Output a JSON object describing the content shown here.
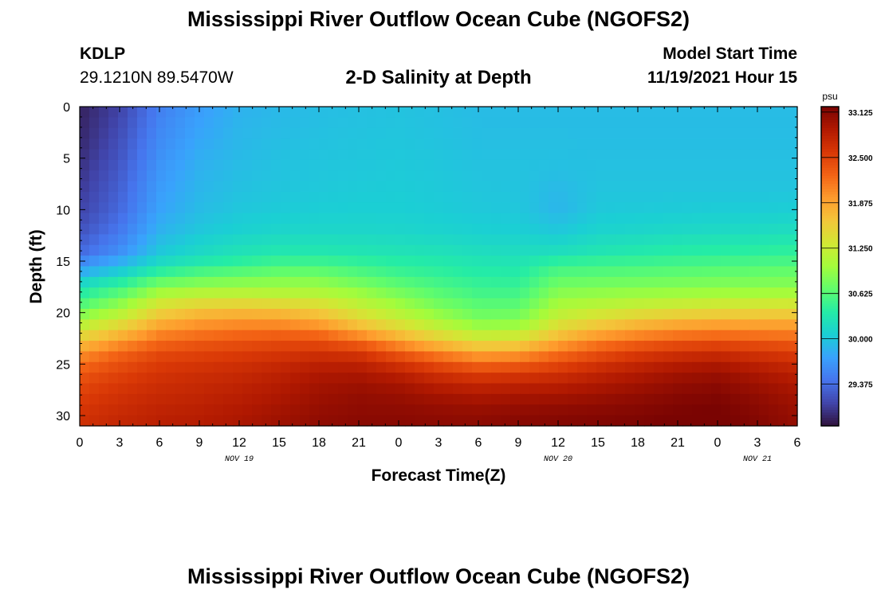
{
  "header": {
    "title": "Mississippi River Outflow Ocean Cube (NGOFS2)",
    "station_id": "KDLP",
    "station_coords": "29.1210N  89.5470W",
    "plot_title": "2-D Salinity at Depth",
    "model_start_label": "Model Start Time",
    "model_start_value": "11/19/2021 Hour 15"
  },
  "footer": {
    "repeat_title": "Mississippi River Outflow Ocean Cube (NGOFS2)"
  },
  "chart_data": {
    "type": "heatmap",
    "title": "2-D Salinity at Depth",
    "xlabel": "Forecast Time(Z)",
    "ylabel": "Depth (ft)",
    "x_tick_labels": [
      "0",
      "3",
      "6",
      "9",
      "12",
      "15",
      "18",
      "21",
      "0",
      "3",
      "6",
      "9",
      "12",
      "15",
      "18",
      "21",
      "0",
      "3",
      "6"
    ],
    "date_labels": [
      {
        "label": "NOV 19",
        "tick_index": 4
      },
      {
        "label": "NOV 20",
        "tick_index": 12
      },
      {
        "label": "NOV 21",
        "tick_index": 17
      }
    ],
    "y_tick_labels": [
      "0",
      "5",
      "10",
      "15",
      "20",
      "25",
      "30"
    ],
    "ylim": [
      0,
      31
    ],
    "x_range_hours": [
      0,
      54
    ],
    "y_inverted": true,
    "colorbar": {
      "unit": "psu",
      "tick_labels": [
        "33.125",
        "32.500",
        "31.875",
        "31.250",
        "30.625",
        "30.000",
        "29.375"
      ],
      "tick_values": [
        33.125,
        32.5,
        31.875,
        31.25,
        30.625,
        30.0,
        29.375
      ],
      "range": [
        28.8,
        33.2
      ],
      "colormap": [
        "#30123b",
        "#4145ab",
        "#4675ed",
        "#39a2fc",
        "#1bcfd4",
        "#24eca6",
        "#61fc6c",
        "#a4fc3b",
        "#d1e834",
        "#f3c63a",
        "#fe9b2d",
        "#f36315",
        "#d93806",
        "#b11901",
        "#7a0402"
      ]
    },
    "columns_times_hours": [
      0,
      3,
      6,
      9,
      12,
      15,
      18,
      21,
      24,
      27,
      30,
      33,
      36,
      39,
      42,
      45,
      48,
      51,
      54
    ],
    "rows_depth_ft": [
      0,
      2,
      4,
      6,
      8,
      10,
      12,
      14,
      15,
      16,
      17,
      18,
      19,
      20,
      21,
      22,
      23,
      24,
      25,
      26,
      27,
      28,
      29,
      30,
      31
    ],
    "salinity_psu": [
      [
        28.9,
        29.1,
        29.5,
        29.7,
        29.85,
        29.9,
        29.93,
        29.95,
        29.97,
        29.95,
        29.92,
        29.92,
        29.92,
        29.92,
        29.92,
        29.92,
        29.92,
        29.92,
        29.92
      ],
      [
        28.92,
        29.15,
        29.55,
        29.75,
        29.88,
        29.92,
        29.95,
        29.97,
        29.98,
        29.96,
        29.93,
        29.93,
        29.93,
        29.93,
        29.93,
        29.93,
        29.93,
        29.93,
        29.93
      ],
      [
        28.95,
        29.2,
        29.6,
        29.8,
        29.9,
        29.95,
        29.97,
        29.99,
        30.0,
        29.98,
        29.95,
        29.95,
        29.95,
        29.94,
        29.94,
        29.94,
        29.94,
        29.94,
        29.94
      ],
      [
        29.0,
        29.25,
        29.65,
        29.85,
        29.93,
        29.97,
        29.99,
        30.0,
        30.02,
        30.0,
        29.97,
        29.97,
        29.95,
        29.96,
        29.96,
        29.96,
        29.96,
        29.96,
        29.96
      ],
      [
        29.05,
        29.3,
        29.7,
        29.88,
        29.96,
        29.99,
        30.01,
        30.03,
        30.04,
        30.02,
        29.99,
        29.98,
        29.9,
        29.98,
        29.98,
        29.98,
        29.98,
        29.98,
        29.98
      ],
      [
        29.1,
        29.35,
        29.75,
        29.92,
        30.0,
        30.03,
        30.05,
        30.06,
        30.06,
        30.04,
        30.01,
        30.0,
        29.88,
        30.01,
        30.02,
        30.03,
        30.04,
        30.04,
        30.05
      ],
      [
        29.2,
        29.45,
        29.85,
        30.0,
        30.08,
        30.12,
        30.13,
        30.13,
        30.12,
        30.1,
        30.07,
        30.06,
        30.0,
        30.1,
        30.12,
        30.15,
        30.16,
        30.18,
        30.2
      ],
      [
        29.35,
        29.6,
        30.0,
        30.15,
        30.25,
        30.3,
        30.3,
        30.28,
        30.26,
        30.24,
        30.2,
        30.19,
        30.2,
        30.28,
        30.32,
        30.36,
        30.38,
        30.4,
        30.42
      ],
      [
        29.55,
        29.8,
        30.15,
        30.3,
        30.4,
        30.48,
        30.48,
        30.42,
        30.37,
        30.33,
        30.28,
        30.27,
        30.4,
        30.45,
        30.47,
        30.5,
        30.52,
        30.54,
        30.55
      ],
      [
        29.8,
        30.05,
        30.4,
        30.55,
        30.62,
        30.68,
        30.68,
        30.58,
        30.48,
        30.42,
        30.36,
        30.35,
        30.58,
        30.6,
        30.62,
        30.64,
        30.66,
        30.68,
        30.7
      ],
      [
        30.1,
        30.35,
        30.7,
        30.8,
        30.85,
        30.88,
        30.88,
        30.75,
        30.62,
        30.52,
        30.44,
        30.43,
        30.72,
        30.74,
        30.76,
        30.78,
        30.8,
        30.81,
        30.82
      ],
      [
        30.35,
        30.6,
        31.0,
        31.1,
        31.12,
        31.1,
        31.08,
        30.95,
        30.78,
        30.63,
        30.52,
        30.52,
        30.86,
        30.9,
        30.93,
        30.95,
        30.97,
        30.98,
        31.0
      ],
      [
        30.55,
        30.85,
        31.3,
        31.42,
        31.45,
        31.42,
        31.35,
        31.15,
        30.95,
        30.75,
        30.62,
        30.62,
        31.0,
        31.08,
        31.15,
        31.2,
        31.24,
        31.26,
        31.28
      ],
      [
        30.8,
        31.1,
        31.55,
        31.7,
        31.75,
        31.72,
        31.62,
        31.35,
        31.12,
        30.9,
        30.72,
        30.74,
        31.15,
        31.3,
        31.4,
        31.48,
        31.52,
        31.54,
        31.55
      ],
      [
        31.1,
        31.4,
        31.8,
        31.95,
        32.0,
        32.0,
        31.9,
        31.6,
        31.35,
        31.1,
        30.88,
        30.9,
        31.35,
        31.55,
        31.7,
        31.8,
        31.85,
        31.85,
        31.85
      ],
      [
        31.4,
        31.7,
        32.05,
        32.15,
        32.22,
        32.25,
        32.2,
        31.95,
        31.65,
        31.38,
        31.15,
        31.2,
        31.6,
        31.85,
        32.0,
        32.1,
        32.15,
        32.12,
        32.1
      ],
      [
        31.7,
        32.0,
        32.25,
        32.35,
        32.4,
        32.45,
        32.45,
        32.3,
        32.0,
        31.72,
        31.5,
        31.55,
        31.9,
        32.15,
        32.3,
        32.4,
        32.45,
        32.4,
        32.35
      ],
      [
        32.0,
        32.25,
        32.45,
        32.5,
        32.55,
        32.6,
        32.65,
        32.6,
        32.35,
        32.1,
        31.9,
        31.95,
        32.2,
        32.4,
        32.55,
        32.65,
        32.7,
        32.62,
        32.55
      ],
      [
        32.2,
        32.4,
        32.55,
        32.6,
        32.65,
        32.72,
        32.8,
        32.8,
        32.62,
        32.42,
        32.25,
        32.3,
        32.45,
        32.62,
        32.75,
        32.85,
        32.9,
        32.8,
        32.7
      ],
      [
        32.35,
        32.5,
        32.62,
        32.68,
        32.72,
        32.8,
        32.9,
        32.92,
        32.82,
        32.65,
        32.55,
        32.58,
        32.65,
        32.78,
        32.88,
        32.98,
        33.02,
        32.92,
        32.82
      ],
      [
        32.45,
        32.58,
        32.68,
        32.72,
        32.78,
        32.86,
        32.96,
        33.0,
        32.95,
        32.82,
        32.75,
        32.78,
        32.82,
        32.9,
        32.98,
        33.06,
        33.1,
        33.0,
        32.9
      ],
      [
        32.52,
        32.63,
        32.72,
        32.76,
        32.82,
        32.9,
        33.0,
        33.05,
        33.02,
        32.95,
        32.9,
        32.93,
        32.95,
        33.0,
        33.06,
        33.12,
        33.15,
        33.06,
        32.96
      ],
      [
        32.58,
        32.68,
        32.76,
        32.8,
        32.86,
        32.94,
        33.03,
        33.08,
        33.07,
        33.03,
        33.0,
        33.03,
        33.05,
        33.08,
        33.12,
        33.17,
        33.2,
        33.1,
        33.0
      ],
      [
        32.62,
        32.72,
        32.8,
        32.84,
        32.9,
        32.98,
        33.06,
        33.1,
        33.1,
        33.08,
        33.07,
        33.1,
        33.12,
        33.14,
        33.16,
        33.2,
        33.22,
        33.13,
        33.03
      ],
      [
        32.65,
        32.75,
        32.82,
        32.86,
        32.92,
        33.0,
        33.08,
        33.12,
        33.12,
        33.1,
        33.1,
        33.13,
        33.15,
        33.17,
        33.19,
        33.22,
        33.24,
        33.15,
        33.05
      ]
    ]
  }
}
